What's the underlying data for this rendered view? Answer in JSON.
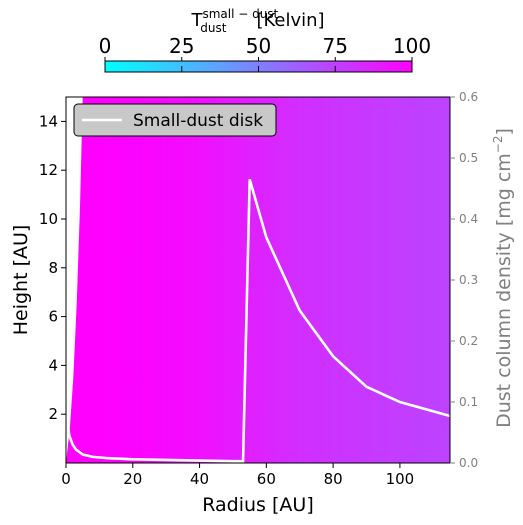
{
  "chart_data": {
    "type": "heatmap",
    "colorbar": {
      "label_main": "T",
      "label_sup": "small − dust",
      "label_sub": "dust",
      "label_unit": "[Kelvin]",
      "range": [
        0,
        100
      ],
      "ticks": [
        "0",
        "25",
        "50",
        "75",
        "100"
      ],
      "tick_values": [
        0,
        25,
        50,
        75,
        100
      ],
      "cmap": [
        "#00ffff",
        "#ff00ff"
      ]
    },
    "heatmap": {
      "description_values": "dust temperature vs radius; white (unfilled) region near r≈0–5 AU above the disk surface",
      "temperature_by_radius": {
        "radius": [
          5,
          10,
          20,
          30,
          40,
          50,
          60,
          70,
          80,
          90,
          100,
          115
        ],
        "temp": [
          100,
          100,
          99,
          97,
          94,
          90,
          86,
          82,
          80,
          78,
          76,
          74
        ]
      }
    },
    "xlabel": "Radius [AU]",
    "ylabel_left": "Height [AU]",
    "ylabel_right_main": "Dust column density [mg cm",
    "ylabel_right_sup": "−2",
    "ylabel_right_close": "]",
    "xlim": [
      0,
      115
    ],
    "ylim_left": [
      0,
      15
    ],
    "ylim_right": [
      0,
      0.6
    ],
    "xticks": [
      "0",
      "20",
      "40",
      "60",
      "80",
      "100"
    ],
    "xtick_values": [
      0,
      20,
      40,
      60,
      80,
      100
    ],
    "yticks_left": [
      "2",
      "4",
      "6",
      "8",
      "10",
      "12",
      "14"
    ],
    "ytick_left_values": [
      2,
      4,
      6,
      8,
      10,
      12,
      14
    ],
    "yticks_right": [
      "0.0",
      "0.1",
      "0.2",
      "0.3",
      "0.4",
      "0.5",
      "0.6"
    ],
    "ytick_right_values": [
      0,
      0.1,
      0.2,
      0.3,
      0.4,
      0.5,
      0.6
    ],
    "series": [
      {
        "name": "Small-dust disk",
        "color": "#ffffff",
        "axis": "right",
        "x": [
          0.5,
          1,
          2,
          3,
          5,
          8,
          12,
          20,
          30,
          40,
          50,
          53,
          53,
          55,
          60,
          70,
          80,
          90,
          100,
          115
        ],
        "y": [
          0.066,
          0.045,
          0.03,
          0.022,
          0.014,
          0.01,
          0.008,
          0.006,
          0.005,
          0.004,
          0.003,
          0.003,
          0.0,
          0.465,
          0.37,
          0.25,
          0.175,
          0.125,
          0.1,
          0.077
        ]
      }
    ],
    "legend": {
      "placement": "top-left",
      "entry": "Small-dust disk"
    },
    "grid": false,
    "right_axis_color": "#808080"
  }
}
